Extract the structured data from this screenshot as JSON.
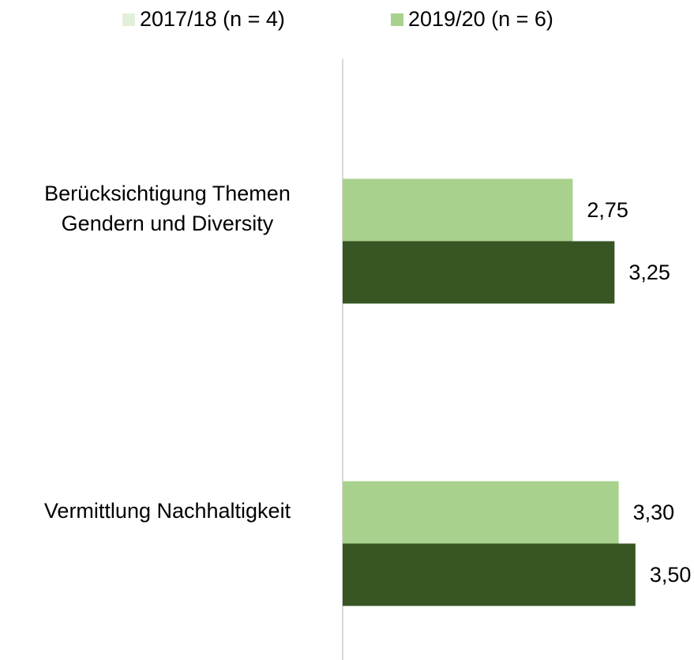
{
  "chart_data": {
    "type": "hbar",
    "categories": [
      "Berücksichtigung Themen\nGendern und Diversity",
      "Vermittlung Nachhaltigkeit"
    ],
    "series": [
      {
        "name": "2017/18 (n = 4)",
        "color": "#e2f0d9",
        "values": [
          null,
          null
        ]
      },
      {
        "name": "2019/20 (n = 6)",
        "color": "#a9d18e",
        "values": [
          2.75,
          3.3
        ],
        "value_labels": [
          "2,75",
          "3,30"
        ]
      },
      {
        "color": "#375623",
        "values": [
          3.25,
          3.5
        ],
        "value_labels": [
          "3,25",
          "3,50"
        ]
      }
    ],
    "xlim": [
      0,
      4.2
    ],
    "legend": "top"
  }
}
